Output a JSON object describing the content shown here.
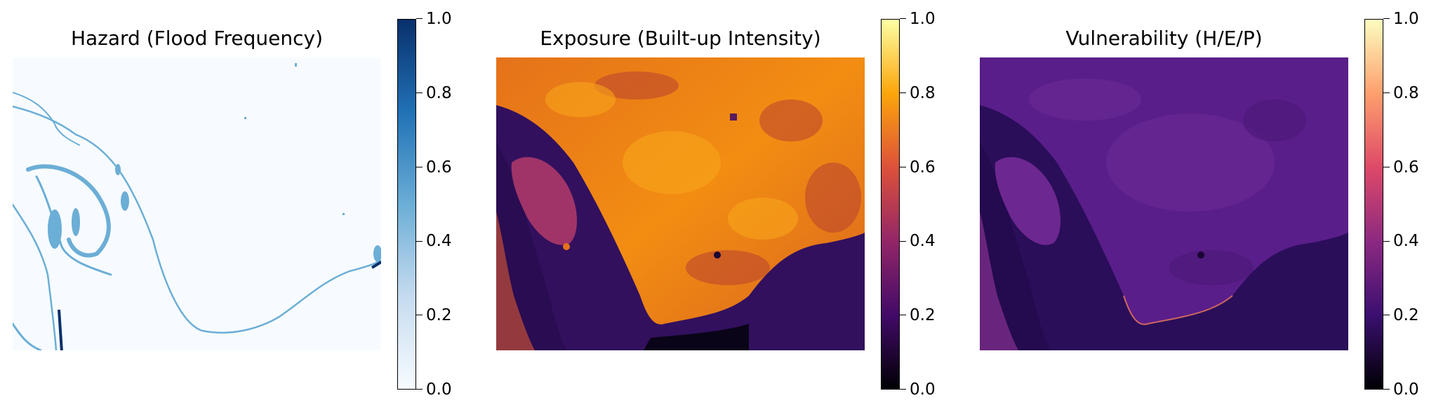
{
  "chart_data": [
    {
      "type": "heatmap",
      "title": "Hazard (Flood Frequency)",
      "colormap": "Blues",
      "colorbar": {
        "min": 0.0,
        "max": 1.0,
        "ticks": [
          "0.0",
          "0.2",
          "0.4",
          "0.6",
          "0.8",
          "1.0"
        ],
        "colors": [
          "#f7fbff",
          "#c6dbef",
          "#6baed6",
          "#2171b5",
          "#08306b"
        ]
      },
      "axes": "off"
    },
    {
      "type": "heatmap",
      "title": "Exposure (Built-up Intensity)",
      "colormap": "inferno",
      "colorbar": {
        "min": 0.0,
        "max": 1.0,
        "ticks": [
          "0.0",
          "0.2",
          "0.4",
          "0.6",
          "0.8",
          "1.0"
        ],
        "colors": [
          "#000004",
          "#420a68",
          "#932667",
          "#dd513a",
          "#fca50a",
          "#fcffa4"
        ]
      },
      "axes": "off"
    },
    {
      "type": "heatmap",
      "title": "Vulnerability (H/E/P)",
      "colormap": "magma",
      "colorbar": {
        "min": 0.0,
        "max": 1.0,
        "ticks": [
          "0.0",
          "0.2",
          "0.4",
          "0.6",
          "0.8",
          "1.0"
        ],
        "colors": [
          "#000004",
          "#3b0f70",
          "#8c2981",
          "#de4968",
          "#fe9f6d",
          "#fcfdbf"
        ]
      },
      "axes": "off"
    }
  ]
}
